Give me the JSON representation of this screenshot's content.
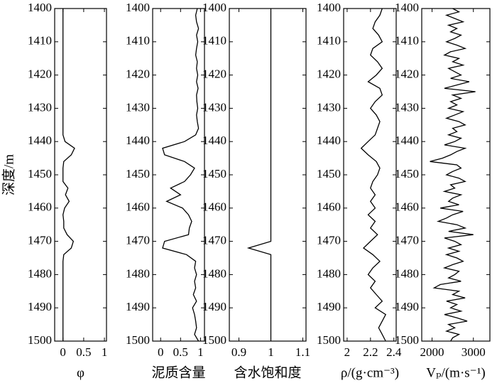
{
  "chart_data": [
    {
      "type": "line",
      "x_label": "φ",
      "y_label": "深度/m",
      "invert_y": true,
      "color": "#000000",
      "xlim": [
        -0.2,
        1.05
      ],
      "xticks": [
        0,
        0.5,
        1
      ],
      "ylim": [
        1400,
        1500
      ],
      "yticks": [
        1400,
        1410,
        1420,
        1430,
        1440,
        1450,
        1460,
        1470,
        1480,
        1490,
        1500
      ],
      "depth": [
        1400,
        1402,
        1404,
        1406,
        1408,
        1410,
        1412,
        1414,
        1416,
        1418,
        1420,
        1422,
        1424,
        1426,
        1428,
        1430,
        1432,
        1434,
        1436,
        1438,
        1440,
        1442,
        1444,
        1446,
        1448,
        1450,
        1452,
        1454,
        1456,
        1458,
        1460,
        1462,
        1464,
        1466,
        1468,
        1470,
        1472,
        1474,
        1476,
        1478,
        1480,
        1482,
        1484,
        1486,
        1488,
        1490,
        1492,
        1494,
        1496,
        1498,
        1500
      ],
      "values": [
        0,
        0,
        0,
        0,
        0,
        0,
        0,
        0,
        0,
        0,
        0,
        0,
        0,
        0,
        0,
        0,
        0,
        0,
        0,
        0,
        0.05,
        0.28,
        0.2,
        0.02,
        0,
        0,
        0,
        0.12,
        0.06,
        0.15,
        0.04,
        0,
        0.02,
        0.02,
        0.1,
        0.25,
        0.2,
        0.02,
        0,
        0,
        0,
        0,
        0,
        0,
        0,
        0,
        0,
        0,
        0,
        0,
        0
      ]
    },
    {
      "type": "line",
      "x_label": "泥质含量",
      "invert_y": true,
      "color": "#000000",
      "xlim": [
        -0.2,
        1.1
      ],
      "xticks": [
        0,
        0.5,
        1
      ],
      "ylim": [
        1400,
        1500
      ],
      "yticks": [
        1400,
        1410,
        1420,
        1430,
        1440,
        1450,
        1460,
        1470,
        1480,
        1490,
        1500
      ],
      "depth": [
        1400,
        1402,
        1404,
        1406,
        1408,
        1410,
        1412,
        1414,
        1416,
        1418,
        1420,
        1422,
        1424,
        1426,
        1428,
        1430,
        1432,
        1434,
        1436,
        1438,
        1440,
        1442,
        1444,
        1446,
        1448,
        1450,
        1452,
        1454,
        1456,
        1458,
        1460,
        1462,
        1464,
        1466,
        1468,
        1470,
        1472,
        1474,
        1476,
        1478,
        1480,
        1482,
        1484,
        1486,
        1488,
        1490,
        1492,
        1494,
        1496,
        1498,
        1500
      ],
      "values": [
        0.92,
        0.88,
        0.9,
        0.95,
        0.9,
        0.93,
        0.9,
        0.88,
        0.92,
        0.9,
        0.93,
        0.9,
        0.94,
        0.9,
        0.91,
        0.93,
        0.9,
        0.92,
        0.95,
        0.88,
        0.6,
        0.05,
        0.1,
        0.6,
        0.85,
        0.75,
        0.6,
        0.25,
        0.5,
        0.15,
        0.55,
        0.7,
        0.78,
        0.72,
        0.7,
        0.1,
        0.05,
        0.65,
        0.88,
        0.85,
        0.9,
        0.85,
        0.88,
        0.82,
        0.9,
        0.8,
        0.85,
        0.88,
        0.9,
        0.85,
        0.95
      ]
    },
    {
      "type": "line",
      "x_label": "含水饱和度",
      "invert_y": true,
      "color": "#000000",
      "xlim": [
        0.87,
        1.11
      ],
      "xticks": [
        0.9,
        1,
        1.1
      ],
      "ylim": [
        1400,
        1500
      ],
      "yticks": [
        1400,
        1410,
        1420,
        1430,
        1440,
        1450,
        1460,
        1470,
        1480,
        1490,
        1500
      ],
      "depth": [
        1400,
        1402,
        1404,
        1406,
        1408,
        1410,
        1412,
        1414,
        1416,
        1418,
        1420,
        1422,
        1424,
        1426,
        1428,
        1430,
        1432,
        1434,
        1436,
        1438,
        1440,
        1442,
        1444,
        1446,
        1448,
        1450,
        1452,
        1454,
        1456,
        1458,
        1460,
        1462,
        1464,
        1466,
        1468,
        1470,
        1472,
        1474,
        1476,
        1478,
        1480,
        1482,
        1484,
        1486,
        1488,
        1490,
        1492,
        1494,
        1496,
        1498,
        1500
      ],
      "values": [
        1,
        1,
        1,
        1,
        1,
        1,
        1,
        1,
        1,
        1,
        1,
        1,
        1,
        1,
        1,
        1,
        1,
        1,
        1,
        1,
        1,
        1,
        1,
        1,
        1,
        1,
        1,
        1,
        1,
        1,
        1,
        1,
        1,
        1,
        1,
        1,
        0.93,
        1,
        1,
        1,
        1,
        1,
        1,
        1,
        1,
        1,
        1,
        1,
        1,
        1,
        1
      ]
    },
    {
      "type": "line",
      "x_label": "ρ/(g·cm⁻³)",
      "invert_y": true,
      "color": "#000000",
      "xlim": [
        1.97,
        2.42
      ],
      "xticks": [
        2,
        2.2,
        2.4
      ],
      "ylim": [
        1400,
        1500
      ],
      "yticks": [
        1400,
        1410,
        1420,
        1430,
        1440,
        1450,
        1460,
        1470,
        1480,
        1490,
        1500
      ],
      "depth": [
        1400,
        1402,
        1404,
        1406,
        1408,
        1410,
        1412,
        1414,
        1416,
        1418,
        1420,
        1422,
        1424,
        1426,
        1428,
        1430,
        1432,
        1434,
        1436,
        1438,
        1440,
        1442,
        1444,
        1446,
        1448,
        1450,
        1452,
        1454,
        1456,
        1458,
        1460,
        1462,
        1464,
        1466,
        1468,
        1470,
        1472,
        1474,
        1476,
        1478,
        1480,
        1482,
        1484,
        1486,
        1488,
        1490,
        1492,
        1494,
        1496,
        1498,
        1500
      ],
      "values": [
        2.3,
        2.28,
        2.24,
        2.22,
        2.27,
        2.3,
        2.22,
        2.2,
        2.26,
        2.3,
        2.25,
        2.18,
        2.28,
        2.3,
        2.24,
        2.2,
        2.25,
        2.28,
        2.26,
        2.24,
        2.18,
        2.12,
        2.18,
        2.25,
        2.28,
        2.26,
        2.22,
        2.2,
        2.24,
        2.2,
        2.24,
        2.18,
        2.24,
        2.2,
        2.26,
        2.2,
        2.14,
        2.22,
        2.28,
        2.22,
        2.18,
        2.24,
        2.2,
        2.25,
        2.3,
        2.24,
        2.33,
        2.3,
        2.27,
        2.3,
        2.33
      ]
    },
    {
      "type": "line",
      "x_label": "Vₚ/(m·s⁻¹)",
      "invert_y": true,
      "color": "#000000",
      "xlim": [
        1750,
        3400
      ],
      "xticks": [
        2000,
        3000
      ],
      "ylim": [
        1400,
        1500
      ],
      "yticks": [
        1400,
        1410,
        1420,
        1430,
        1440,
        1450,
        1460,
        1470,
        1480,
        1490,
        1500
      ],
      "depth": [
        1400,
        1401,
        1402,
        1403,
        1404,
        1405,
        1406,
        1407,
        1408,
        1409,
        1410,
        1411,
        1412,
        1413,
        1414,
        1415,
        1416,
        1417,
        1418,
        1419,
        1420,
        1421,
        1422,
        1423,
        1424,
        1425,
        1426,
        1427,
        1428,
        1429,
        1430,
        1431,
        1432,
        1433,
        1434,
        1435,
        1436,
        1437,
        1438,
        1439,
        1440,
        1441,
        1442,
        1443,
        1444,
        1445,
        1446,
        1447,
        1448,
        1449,
        1450,
        1451,
        1452,
        1453,
        1454,
        1455,
        1456,
        1457,
        1458,
        1459,
        1460,
        1461,
        1462,
        1463,
        1464,
        1465,
        1466,
        1467,
        1468,
        1469,
        1470,
        1471,
        1472,
        1473,
        1474,
        1475,
        1476,
        1477,
        1478,
        1479,
        1480,
        1481,
        1482,
        1483,
        1484,
        1485,
        1486,
        1487,
        1488,
        1489,
        1490,
        1491,
        1492,
        1493,
        1494,
        1495,
        1496,
        1497,
        1498,
        1499,
        1500
      ],
      "values": [
        2500,
        2650,
        2350,
        2550,
        2750,
        2400,
        2600,
        2450,
        2700,
        2550,
        2350,
        2600,
        2800,
        2450,
        2300,
        2650,
        2500,
        2750,
        2400,
        2550,
        2700,
        2450,
        2900,
        2600,
        2300,
        3050,
        2500,
        2700,
        2450,
        2600,
        2400,
        2750,
        2550,
        2350,
        2650,
        2800,
        2500,
        2600,
        2400,
        2700,
        2550,
        2300,
        2800,
        2600,
        2450,
        2250,
        1950,
        2600,
        2700,
        2500,
        2350,
        2650,
        2800,
        2450,
        2550,
        2300,
        2700,
        2500,
        2400,
        2650,
        2200,
        2750,
        2500,
        2350,
        2150,
        2600,
        2800,
        2400,
        3000,
        2300,
        2550,
        2700,
        2400,
        2650,
        2350,
        2600,
        2750,
        2500,
        2300,
        2650,
        2550,
        2400,
        2700,
        2200,
        2050,
        2650,
        2500,
        2800,
        2350,
        2600,
        2450,
        2700,
        2300,
        2600,
        2850,
        2400,
        2550,
        2350,
        2650,
        2500,
        2450
      ]
    }
  ]
}
